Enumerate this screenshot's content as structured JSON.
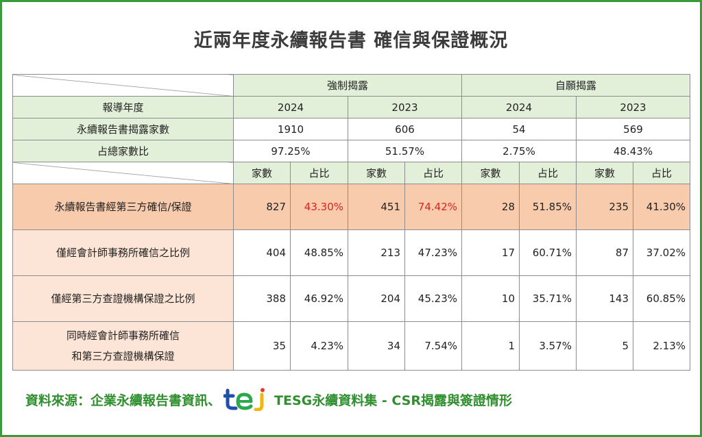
{
  "title": "近兩年度永續報告書 確信與保證概況",
  "table": {
    "groups": [
      "強制揭露",
      "自願揭露"
    ],
    "year_row": {
      "label": "報導年度",
      "cells": [
        "2024",
        "2023",
        "2024",
        "2023"
      ]
    },
    "count_row": {
      "label": "永續報告書揭露家數",
      "cells": [
        "1910",
        "606",
        "54",
        "569"
      ]
    },
    "ratio_row": {
      "label": "占總家數比",
      "cells": [
        "97.25%",
        "51.57%",
        "2.75%",
        "48.43%"
      ]
    },
    "subheaders": [
      "家數",
      "占比"
    ],
    "rows": [
      {
        "label": [
          "永續報告書經第三方確信/保證"
        ],
        "cells": [
          "827",
          "43.30%",
          "451",
          "74.42%",
          "28",
          "51.85%",
          "235",
          "41.30%"
        ]
      },
      {
        "label": [
          "僅經會計師事務所確信之比例"
        ],
        "cells": [
          "404",
          "48.85%",
          "213",
          "47.23%",
          "17",
          "60.71%",
          "87",
          "37.02%"
        ]
      },
      {
        "label": [
          "僅經第三方查證機構保證之比例"
        ],
        "cells": [
          "388",
          "46.92%",
          "204",
          "45.23%",
          "10",
          "35.71%",
          "143",
          "60.85%"
        ]
      },
      {
        "label": [
          "同時經會計師事務所確信",
          "和第三方查證機構保證"
        ],
        "cells": [
          "35",
          "4.23%",
          "34",
          "7.54%",
          "1",
          "3.57%",
          "5",
          "2.13%"
        ]
      }
    ]
  },
  "source": {
    "prefix": "資料來源：企業永續報告書資訊、",
    "suffix": "TESG永續資料集 - CSR揭露與簽證情形"
  }
}
